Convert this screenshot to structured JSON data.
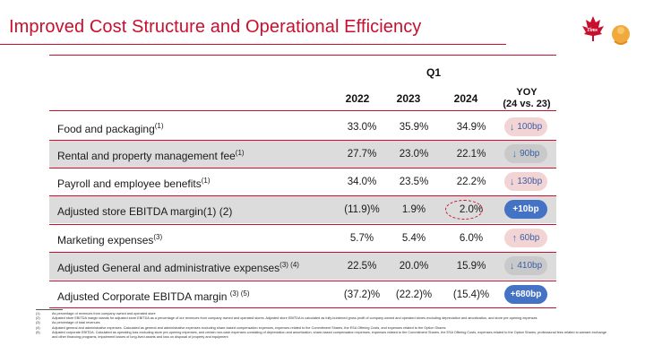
{
  "title": "Improved Cost Structure and Operational Efficiency",
  "logo": {
    "brand_text": "Tims",
    "brand_color": "#c8102e"
  },
  "header": {
    "period": "Q1",
    "years": [
      "2022",
      "2023",
      "2024"
    ],
    "yoy_line1": "YOY",
    "yoy_line2": "(24 vs. 23)"
  },
  "rows": [
    {
      "label": "Food and packaging",
      "sup": "(1)",
      "v2022": "33.0%",
      "v2023": "35.9%",
      "v2024": "34.9%",
      "yoy": "100bp",
      "dir": "down"
    },
    {
      "label": "Rental and property management fee",
      "sup": "(1)",
      "v2022": "27.7%",
      "v2023": "23.0%",
      "v2024": "22.1%",
      "yoy": "90bp",
      "dir": "down"
    },
    {
      "label": "Payroll and employee benefits",
      "sup": "(1)",
      "v2022": "34.0%",
      "v2023": "23.5%",
      "v2024": "22.2%",
      "yoy": "130bp",
      "dir": "down"
    },
    {
      "label": "Adjusted store EBITDA margin(1) (2)",
      "sup": "",
      "v2022": "(11.9)%",
      "v2023": "1.9%",
      "v2024": "2.0%",
      "yoy": "+10bp",
      "dir": "solid"
    },
    {
      "label": "Marketing expenses",
      "sup": "(3)",
      "v2022": "5.7%",
      "v2023": "5.4%",
      "v2024": "6.0%",
      "yoy": "60bp",
      "dir": "up"
    },
    {
      "label": "Adjusted General and administrative expenses",
      "sup": "(3) (4)",
      "v2022": "22.5%",
      "v2023": "20.0%",
      "v2024": "15.9%",
      "yoy": "410bp",
      "dir": "down"
    },
    {
      "label": "Adjusted Corporate EBITDA margin ",
      "sup": "(3) (5)",
      "v2022": "(37.2)%",
      "v2023": "(22.2)%",
      "v2024": "(15.4)%",
      "yoy": "+680bp",
      "dir": "solid"
    }
  ],
  "footnotes": [
    {
      "num": "(1)",
      "text": "As percentage of revenues from company owned and operated store"
    },
    {
      "num": "(2)",
      "text": "Adjusted store EBITDA margin stands for adjusted store EBITDA as a percentage of our revenues from company owned and operated stores. Adjusted store EBITDA is calculated as fully-burdened gross profit of company owned and operated stores excluding depreciation and amortization, and store pre-opening expenses"
    },
    {
      "num": "(3)",
      "text": "As percentage of total revenues"
    },
    {
      "num": "(4)",
      "text": "Adjusted general and administrative expenses. Calculated as general and administrative expenses excluding share-based compensation expenses, expenses related to the Commitment Shares, the ESA Offering Costs, and expenses related to the Option Shares"
    },
    {
      "num": "(5)",
      "text": "Adjusted corporate EBITDA. Calculated as operating loss excluding store pre-opening expenses, and certain non-cash expenses consisting of depreciation and amortization, share-based compensation expenses, expenses related to the Commitment Shares, the ESA Offering Costs, expenses related to the Option Shares, professional fees related to warrant exchange and other financing programs, impairment losses of long-lived assets and loss on disposal of property and equipment"
    }
  ]
}
